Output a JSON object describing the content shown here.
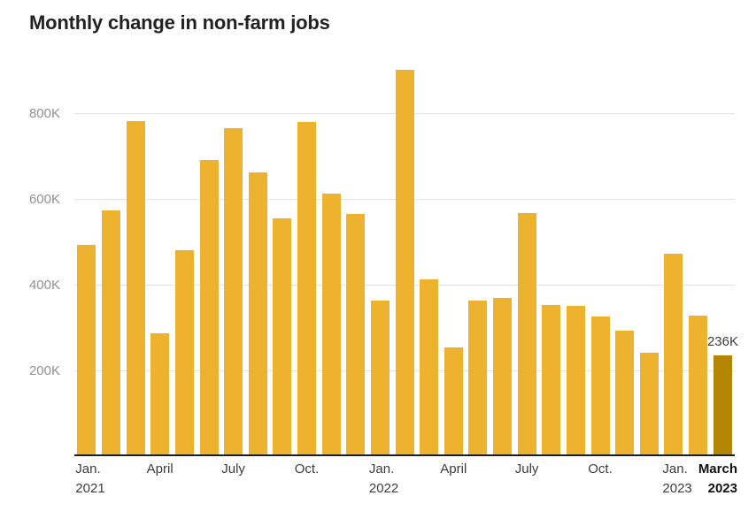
{
  "title": "Monthly change in non-farm jobs",
  "chart_data": {
    "type": "bar",
    "title": "Monthly change in non-farm jobs",
    "unit": "thousands of jobs",
    "categories": [
      "Jan. 2021",
      "Feb. 2021",
      "March 2021",
      "April 2021",
      "May 2021",
      "June 2021",
      "July 2021",
      "Aug. 2021",
      "Sep. 2021",
      "Oct. 2021",
      "Nov. 2021",
      "Dec. 2021",
      "Jan. 2022",
      "Feb. 2022",
      "March 2022",
      "April 2022",
      "May 2022",
      "June 2022",
      "July 2022",
      "Aug. 2022",
      "Sep. 2022",
      "Oct. 2022",
      "Nov. 2022",
      "Dec. 2022",
      "Jan. 2023",
      "Feb. 2023",
      "March 2023"
    ],
    "values": [
      493,
      573,
      781,
      287,
      481,
      691,
      766,
      662,
      555,
      779,
      612,
      566,
      363,
      901,
      412,
      254,
      363,
      370,
      567,
      352,
      350,
      325,
      292,
      241,
      473,
      328,
      236
    ],
    "value_suffix": "K",
    "ylim": [
      0,
      930
    ],
    "y_ticks": [
      200,
      400,
      600,
      800
    ],
    "y_tick_labels": [
      "200K",
      "400K",
      "600K",
      "800K"
    ],
    "grid": true,
    "legend": "none",
    "bar_color": "#edb22e",
    "highlight_color": "#b28602",
    "highlight_index": 26,
    "annotation": {
      "text": "236K",
      "bar_index": 26
    },
    "x_tick_marks": [
      {
        "bar_index": 0,
        "line1": "Jan.",
        "line2": "2021",
        "bold": false,
        "anchor": "left"
      },
      {
        "bar_index": 3,
        "line1": "April",
        "line2": "",
        "bold": false,
        "anchor": "center"
      },
      {
        "bar_index": 6,
        "line1": "July",
        "line2": "",
        "bold": false,
        "anchor": "center"
      },
      {
        "bar_index": 9,
        "line1": "Oct.",
        "line2": "",
        "bold": false,
        "anchor": "center"
      },
      {
        "bar_index": 12,
        "line1": "Jan.",
        "line2": "2022",
        "bold": false,
        "anchor": "left"
      },
      {
        "bar_index": 15,
        "line1": "April",
        "line2": "",
        "bold": false,
        "anchor": "center"
      },
      {
        "bar_index": 18,
        "line1": "July",
        "line2": "",
        "bold": false,
        "anchor": "center"
      },
      {
        "bar_index": 21,
        "line1": "Oct.",
        "line2": "",
        "bold": false,
        "anchor": "center"
      },
      {
        "bar_index": 24,
        "line1": "Jan.",
        "line2": "2023",
        "bold": false,
        "anchor": "left"
      },
      {
        "bar_index": 26,
        "line1": "March",
        "line2": "2023",
        "bold": true,
        "anchor": "right"
      }
    ]
  }
}
